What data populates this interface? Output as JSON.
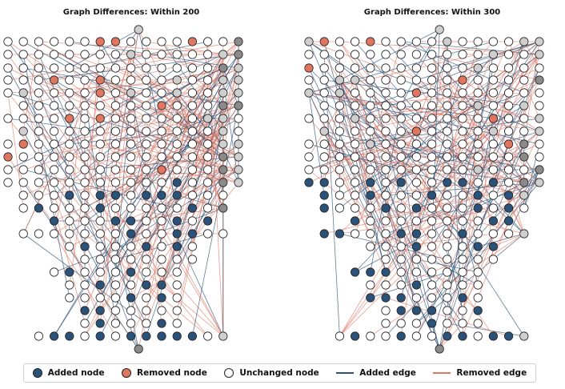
{
  "panels": [
    {
      "title": "Graph Differences: Within 200"
    },
    {
      "title": "Graph Differences: Within 300"
    }
  ],
  "legend": {
    "added_node": "Added node",
    "removed_node": "Removed node",
    "unchanged_node": "Unchanged node",
    "added_edge": "Added edge",
    "removed_edge": "Removed edge"
  },
  "colors": {
    "added": "#2b5279",
    "removed": "#e07560",
    "unchanged": "#ffffff",
    "light_gray": "#cfcfcf",
    "dark_gray": "#8a8a8a",
    "node_stroke": "#222222"
  }
}
